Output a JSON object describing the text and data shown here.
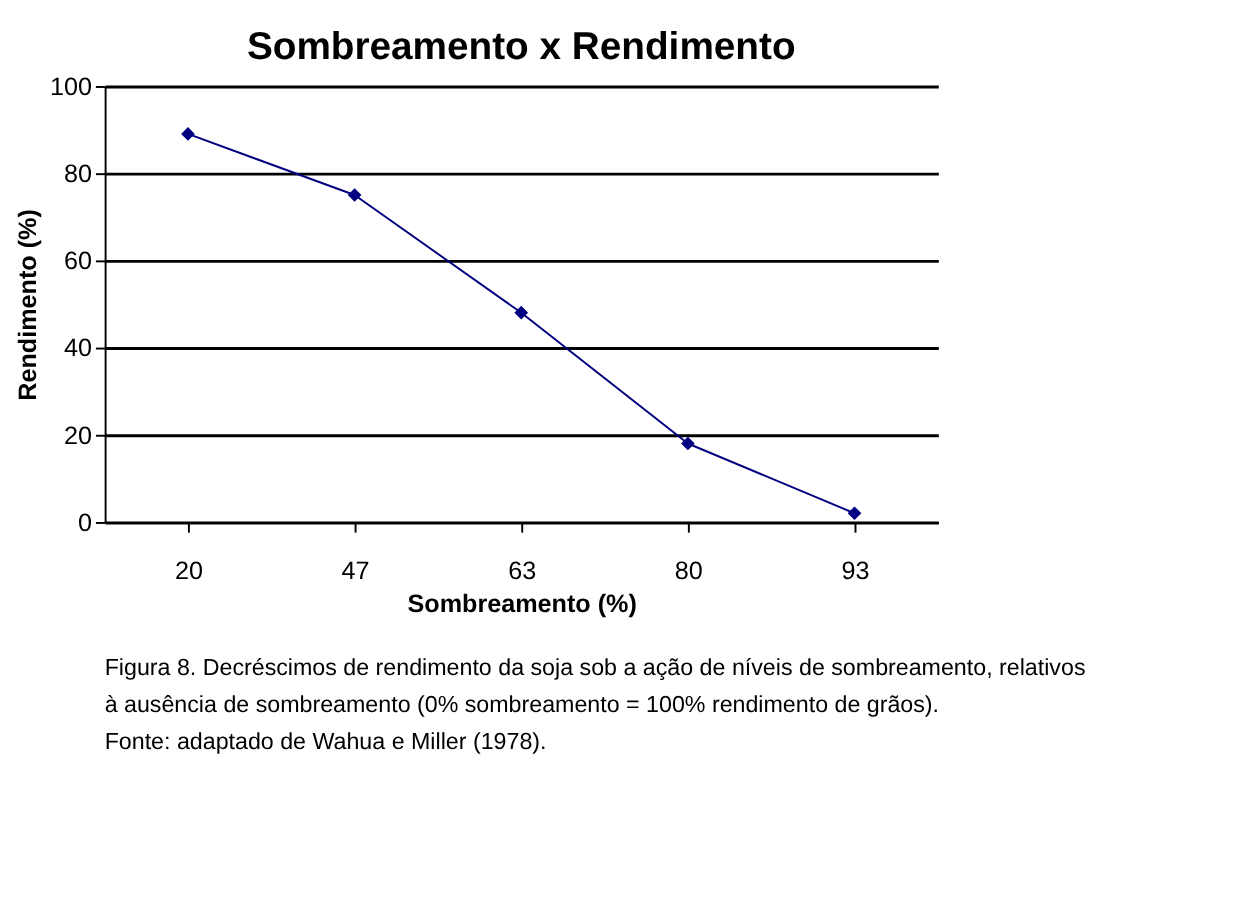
{
  "chart_data": {
    "type": "line",
    "title": "Sombreamento x Rendimento",
    "xlabel": "Sombreamento (%)",
    "ylabel": "Rendimento (%)",
    "categories": [
      "20",
      "47",
      "63",
      "80",
      "93"
    ],
    "series": [
      {
        "color": "#000080",
        "values": [
          89,
          75,
          48,
          18,
          2
        ]
      }
    ],
    "ylim": [
      0,
      100
    ],
    "yticks": [
      0,
      20,
      40,
      60,
      80,
      100
    ],
    "grid": "y",
    "marker": "diamond",
    "line_style": "solid",
    "legend": false,
    "annotations": [
      "Figura 8. Decréscimos de rendimento da soja sob a ação de níveis de sombreamento, relativos à ausência de sombreamento (0% sombreamento = 100% rendimento de grãos).",
      "Fonte: adaptado de Wahua e Miller (1978)."
    ]
  }
}
